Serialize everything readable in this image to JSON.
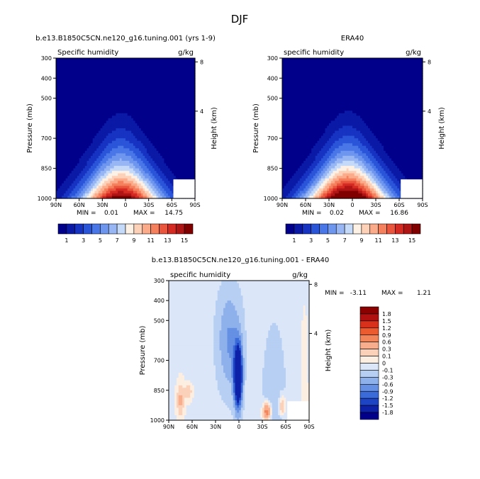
{
  "page_title": "DJF",
  "chart_data": [
    {
      "type": "heatmap",
      "header": "b.e13.B1850C5CN.ne120_g16.tuning.001 (yrs 1-9)",
      "title": "Specific humidity",
      "units": "g/kg",
      "xlabel": "",
      "ylabel": "Pressure (mb)",
      "y2label": "Height (km)",
      "xticks": [
        "90N",
        "60N",
        "30N",
        "0",
        "30S",
        "60S",
        "90S"
      ],
      "yticks": [
        "300",
        "400",
        "500",
        "700",
        "850",
        "1000"
      ],
      "y2ticks": [
        "8",
        "4"
      ],
      "ylim": [
        1000,
        300
      ],
      "min_label": "MIN =",
      "min_value": "0.01",
      "max_label": "MAX =",
      "max_value": "14.75",
      "peak": 14.75,
      "peak_lat": 0,
      "legend": "horizontal-below",
      "colorbar_labels": [
        "1",
        "3",
        "5",
        "7",
        "9",
        "11",
        "13",
        "15"
      ]
    },
    {
      "type": "heatmap",
      "header": "ERA40",
      "title": "specific humidity",
      "units": "g/kg",
      "xlabel": "",
      "ylabel": "Pressure (mb)",
      "y2label": "Height (km)",
      "xticks": [
        "90N",
        "60N",
        "30N",
        "0",
        "30S",
        "60S",
        "90S"
      ],
      "yticks": [
        "300",
        "400",
        "500",
        "700",
        "850",
        "1000"
      ],
      "y2ticks": [
        "8",
        "4"
      ],
      "ylim": [
        1000,
        300
      ],
      "min_label": "MIN =",
      "min_value": "0.02",
      "max_label": "MAX =",
      "max_value": "16.86",
      "peak": 16.86,
      "peak_lat": 0,
      "legend": "horizontal-below",
      "colorbar_labels": [
        "1",
        "3",
        "5",
        "7",
        "9",
        "11",
        "13",
        "15"
      ]
    },
    {
      "type": "heatmap",
      "header": "b.e13.B1850C5CN.ne120_g16.tuning.001 - ERA40",
      "title": "specific humidity",
      "units": "g/kg",
      "xlabel": "",
      "ylabel": "Pressure (mb)",
      "y2label": "Height (km)",
      "xticks": [
        "90N",
        "60N",
        "30N",
        "0",
        "30S",
        "60S",
        "90S"
      ],
      "yticks": [
        "300",
        "400",
        "500",
        "700",
        "850",
        "1000"
      ],
      "y2ticks": [
        "8",
        "4"
      ],
      "ylim": [
        1000,
        300
      ],
      "min_label": "MIN =",
      "min_value": "-3.11",
      "max_label": "MAX =",
      "max_value": "1.21",
      "legend": "vertical-right",
      "colorbar_labels": [
        "1.8",
        "1.5",
        "1.2",
        "0.9",
        "0.6",
        "0.3",
        "0.1",
        "0",
        "-0.1",
        "-0.3",
        "-0.6",
        "-0.9",
        "-1.2",
        "-1.5",
        "-1.8"
      ]
    }
  ],
  "colors": {
    "seq": [
      "#00008b",
      "#0a1aa6",
      "#1633c2",
      "#2b55d9",
      "#4a77e8",
      "#6e96ee",
      "#97b6f3",
      "#c5d9f8",
      "#fdf0e4",
      "#fdd0b8",
      "#fbab8a",
      "#f5805e",
      "#e9553d",
      "#d42a22",
      "#b01515",
      "#800000"
    ],
    "diff": [
      "#8b0000",
      "#b01010",
      "#d8301a",
      "#ec5a30",
      "#f3855a",
      "#f8ae8c",
      "#fbd1ba",
      "#fdeee2",
      "#dbe7f8",
      "#b6cff3",
      "#8eb1ec",
      "#6590e4",
      "#3b6ad9",
      "#1c44c4",
      "#0d20a8",
      "#00008b"
    ]
  }
}
